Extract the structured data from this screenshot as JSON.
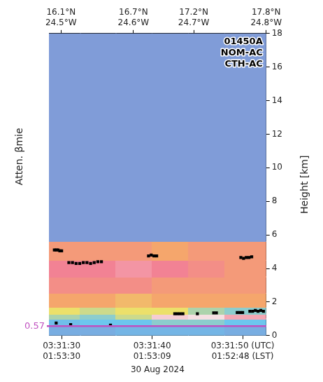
{
  "chart_data": {
    "type": "heatmap",
    "xlabel": "30 Aug 2024",
    "ylabel": "Height [km]",
    "ylabel_left": "Atten. βmie",
    "text_box": [
      "01450A",
      "NOM-AC",
      "CTH-AC"
    ],
    "xlim": [
      28.6,
      52.6
    ],
    "xticks": [
      {
        "value": 30,
        "label": "03:31:30\n01:53:30"
      },
      {
        "value": 40,
        "label": "03:31:40\n01:53:09"
      },
      {
        "value": 50,
        "label": "03:31:50 (UTC)\n01:52:48 (LST)"
      }
    ],
    "x2lim": [
      16.0,
      17.8
    ],
    "x2ticks": [
      {
        "value": 16.1,
        "label": "16.1°N\n24.5°W"
      },
      {
        "value": 16.7,
        "label": "16.7°N\n24.6°W"
      },
      {
        "value": 17.2,
        "label": "17.2°N\n24.7°W"
      },
      {
        "value": 17.8,
        "label": "17.8°N\n24.8°W"
      }
    ],
    "ylim": [
      0,
      18
    ],
    "yticks": [
      0,
      2,
      4,
      6,
      8,
      10,
      12,
      14,
      16,
      18
    ],
    "grid": false,
    "heatmap": {
      "x_edges": [
        28.6,
        32,
        36,
        40,
        44,
        48,
        52.6
      ],
      "y_edges": [
        0,
        0.57,
        1.0,
        1.3,
        1.7,
        2.5,
        3.5,
        4.5,
        5.6,
        18
      ],
      "values": [
        [
          -6.7,
          -6.7,
          -6.6,
          -6.6,
          -6.6,
          -6.7
        ],
        [
          -6.5,
          -6.4,
          -6.4,
          -6.3,
          -6.3,
          -6.4
        ],
        [
          -6.2,
          -6.3,
          -6.1,
          -5.0,
          -4.9,
          -5.2
        ],
        [
          -6.0,
          -6.1,
          -6.0,
          -6.0,
          -6.2,
          -6.3
        ],
        [
          -5.7,
          -5.7,
          -5.8,
          -5.7,
          -5.7,
          -5.7
        ],
        [
          -5.5,
          -5.5,
          -5.5,
          -5.6,
          -5.6,
          -5.6
        ],
        [
          -5.4,
          -5.4,
          -5.3,
          -5.4,
          -5.5,
          -5.6
        ],
        [
          -5.6,
          -5.6,
          -5.6,
          -5.7,
          -5.6,
          -5.6
        ],
        [
          -6.9,
          -6.9,
          -6.9,
          -6.9,
          -6.9,
          -6.9
        ]
      ],
      "colormap": [
        {
          "value": -7.0,
          "color": "#8494d4"
        },
        {
          "value": -6.4,
          "color": "#6cc6ee"
        },
        {
          "value": -6.0,
          "color": "#ece06a"
        },
        {
          "value": -5.7,
          "color": "#f5a66c"
        },
        {
          "value": -5.4,
          "color": "#f28294"
        },
        {
          "value": -4.8,
          "color": "#f6f2f2"
        }
      ]
    },
    "series": [
      {
        "type": "scatter",
        "color": "#000000",
        "marker": "square",
        "x": [
          29.2,
          29.4,
          29.6,
          29.8,
          30.0,
          30.8,
          31.2,
          31.6,
          32.0,
          32.4,
          32.8,
          33.2,
          33.6,
          34.0,
          34.4,
          39.6,
          39.9,
          40.2,
          40.5,
          49.8,
          50.1,
          50.4,
          50.7,
          51.0,
          29.4,
          31.0,
          35.4,
          42.5,
          42.8,
          43.1,
          43.4,
          45.0,
          46.8,
          47.1,
          49.4,
          49.7,
          50.0,
          50.8,
          51.1,
          51.4,
          51.7,
          52.0,
          52.3
        ],
        "y": [
          5.1,
          5.1,
          5.1,
          5.05,
          5.05,
          4.35,
          4.35,
          4.3,
          4.3,
          4.35,
          4.35,
          4.3,
          4.35,
          4.4,
          4.4,
          4.75,
          4.8,
          4.75,
          4.75,
          4.65,
          4.6,
          4.65,
          4.65,
          4.7,
          0.75,
          0.65,
          0.62,
          1.3,
          1.3,
          1.3,
          1.3,
          1.3,
          1.35,
          1.35,
          1.38,
          1.38,
          1.38,
          1.45,
          1.45,
          1.5,
          1.45,
          1.5,
          1.45
        ]
      }
    ],
    "reference_line": {
      "value": 0.57,
      "color": "#c050c0"
    }
  }
}
